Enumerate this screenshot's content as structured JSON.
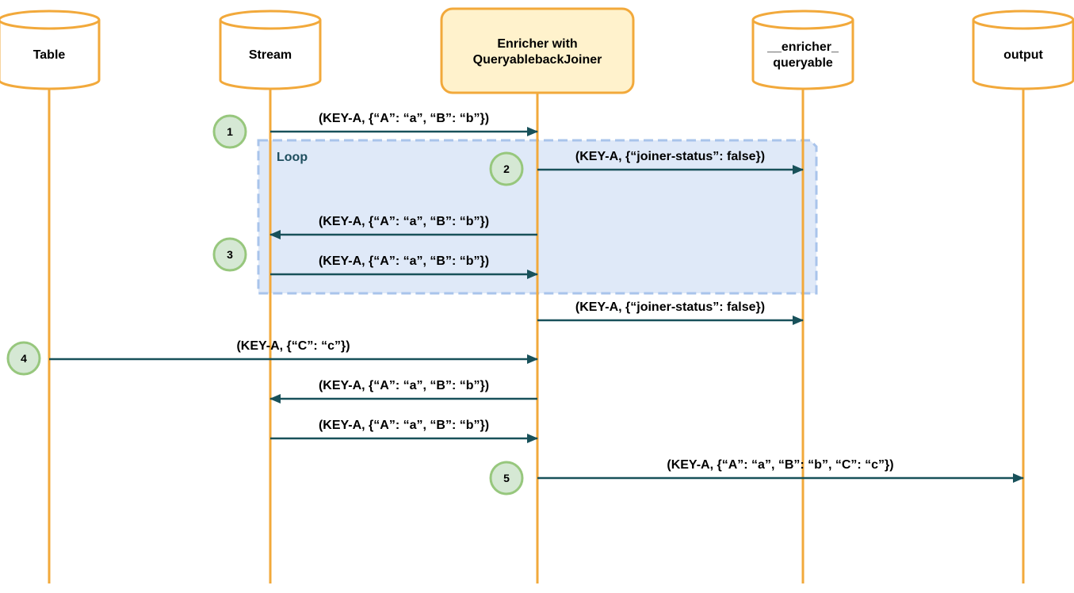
{
  "colors": {
    "lifeline": "#f2a93b",
    "actor_fill": "#ffffff",
    "process_fill": "#fff2cc",
    "arrow": "#18515a",
    "loop_fill": "#dfe9f8",
    "loop_border": "#a9c4eb",
    "loop_label": "#1e4e5e",
    "step_fill": "#d5e8d4",
    "step_border": "#97c77d"
  },
  "participants": [
    {
      "id": "table",
      "label": [
        "Table"
      ],
      "shape": "cylinder"
    },
    {
      "id": "stream",
      "label": [
        "Stream"
      ],
      "shape": "cylinder"
    },
    {
      "id": "enricher",
      "label": [
        "Enricher with",
        "QueryablebackJoiner"
      ],
      "shape": "process"
    },
    {
      "id": "queryable",
      "label": [
        "__enricher_",
        "queryable"
      ],
      "shape": "cylinder"
    },
    {
      "id": "output",
      "label": [
        "output"
      ],
      "shape": "cylinder"
    }
  ],
  "loop": {
    "label": "Loop"
  },
  "messages": [
    {
      "from": "stream",
      "to": "enricher",
      "label": "(KEY-A, {“A”: “a”, “B”: “b”})"
    },
    {
      "from": "enricher",
      "to": "queryable",
      "label": "(KEY-A, {“joiner-status”: false})"
    },
    {
      "from": "enricher",
      "to": "stream",
      "label": "(KEY-A, {“A”: “a”, “B”: “b”})"
    },
    {
      "from": "stream",
      "to": "enricher",
      "label": "(KEY-A, {“A”: “a”, “B”: “b”})"
    },
    {
      "from": "enricher",
      "to": "queryable",
      "label": "(KEY-A, {“joiner-status”: false})"
    },
    {
      "from": "table",
      "to": "enricher",
      "label": "(KEY-A, {“C”: “c”})"
    },
    {
      "from": "enricher",
      "to": "stream",
      "label": "(KEY-A, {“A”: “a”, “B”: “b”})"
    },
    {
      "from": "stream",
      "to": "enricher",
      "label": "(KEY-A, {“A”: “a”, “B”: “b”})"
    },
    {
      "from": "enricher",
      "to": "output",
      "label": "(KEY-A, {“A”: “a”, “B”: “b”, “C”: “c”})"
    }
  ],
  "steps": [
    "1",
    "2",
    "3",
    "4",
    "5"
  ]
}
